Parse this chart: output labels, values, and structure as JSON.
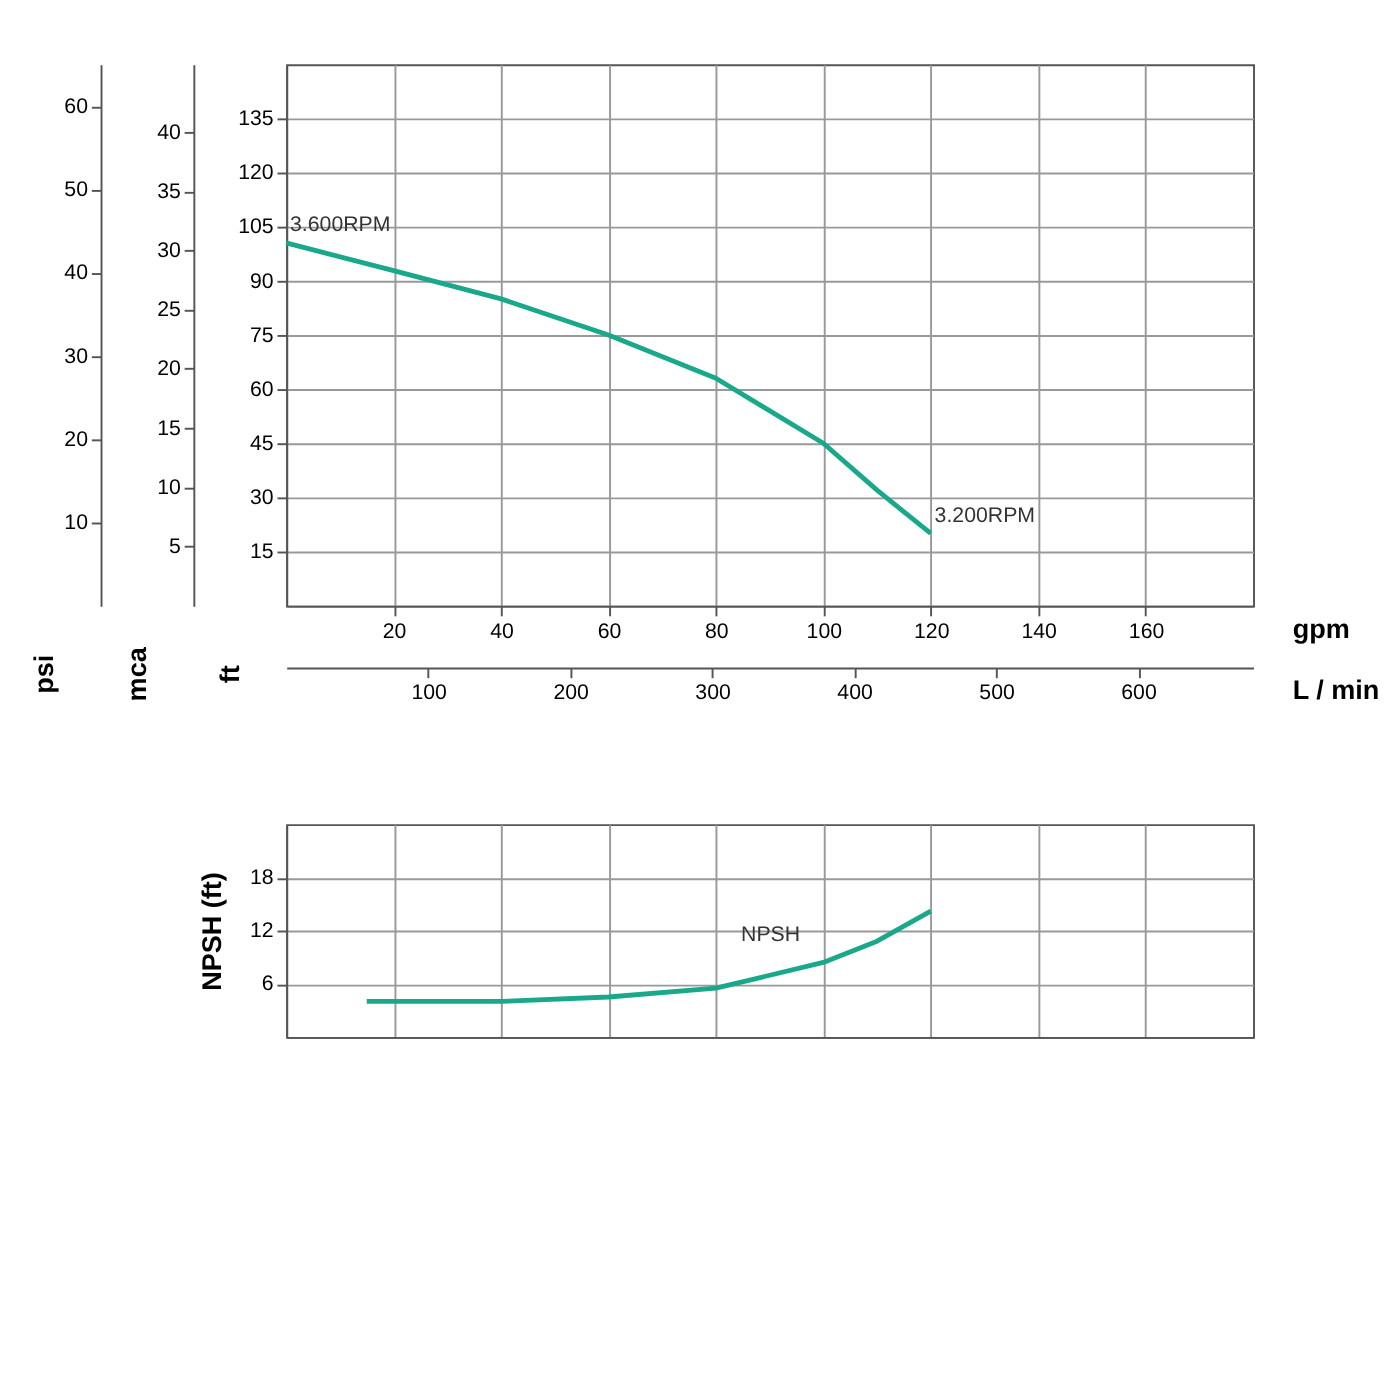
{
  "chart_data": [
    {
      "type": "line",
      "xlabel": "gpm",
      "x2label": "L / min",
      "ylabel": "ft",
      "y2label": "psi",
      "y3label": "mca",
      "xlim": [
        0,
        180
      ],
      "xticks": [
        20,
        40,
        60,
        80,
        100,
        120,
        140,
        160
      ],
      "x2lim": [
        0,
        681
      ],
      "x2ticks": [
        100,
        200,
        300,
        400,
        500,
        600
      ],
      "ylim": [
        0,
        150
      ],
      "yticks": [
        15,
        30,
        45,
        60,
        75,
        90,
        105,
        120,
        135
      ],
      "y2lim": [
        0,
        65
      ],
      "y2ticks": [
        10,
        20,
        30,
        40,
        50,
        60
      ],
      "y3lim": [
        0,
        45.7
      ],
      "y3ticks": [
        5,
        10,
        15,
        20,
        25,
        30,
        35,
        40
      ],
      "grid": true,
      "series": [
        {
          "color": "#1aa88a",
          "x": [
            0,
            20,
            40,
            60,
            80,
            100,
            110,
            120
          ],
          "values": [
            100.5,
            92.8,
            85,
            75,
            63,
            45,
            32,
            20
          ]
        }
      ],
      "annotations": [
        {
          "text": "3.600RPM",
          "x": 0,
          "y": 100.5
        },
        {
          "text": "3.200RPM",
          "x": 120,
          "y": 20
        }
      ]
    },
    {
      "type": "line",
      "ylabel": "NPSH (ft)",
      "xlim": [
        0,
        180
      ],
      "xticks": [
        20,
        40,
        60,
        80,
        100,
        120,
        140,
        160
      ],
      "ylim": [
        0,
        24
      ],
      "yticks": [
        6,
        12,
        18
      ],
      "grid": true,
      "tick_labels": "y",
      "series": [
        {
          "name": "NPSH",
          "color": "#1aa88a",
          "x": [
            15,
            40,
            60,
            80,
            100,
            110,
            120
          ],
          "values": [
            4,
            4,
            4.5,
            5.5,
            8.4,
            10.8,
            14.2
          ]
        }
      ]
    }
  ]
}
